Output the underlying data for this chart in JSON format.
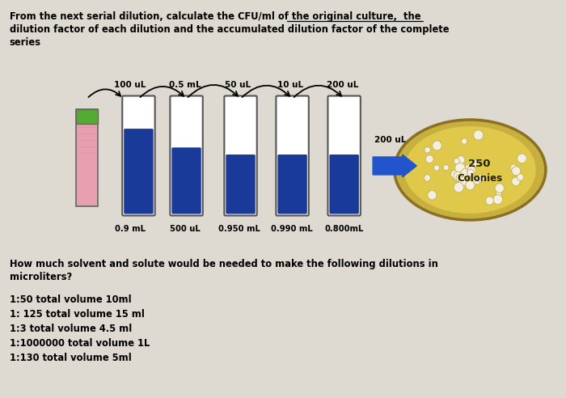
{
  "bg_color": "#dedad2",
  "title_line1": "From the next serial dilution, calculate the CFU/ml of the original culture,  the",
  "title_line2": "dilution factor of each dilution and the accumulated dilution factor of the complete",
  "title_line3": "series",
  "top_labels": [
    "100 uL",
    "0.5 mL",
    "50 uL",
    "10 uL",
    "200 uL"
  ],
  "bottom_labels": [
    "0.9 mL",
    "500 uL",
    "0.950 mL",
    "0.990 mL",
    "0.800mL"
  ],
  "transfer_label": "200 uL",
  "plate_label1": "250",
  "plate_label2": "Colonies",
  "question_line1": "How much solvent and solute would be needed to make the following dilutions in",
  "question_line2": "microliters?",
  "dilutions": [
    "1:50 total volume 10ml",
    "1: 125 total volume 15 ml",
    "1:3 total volume 4.5 ml",
    "1:1000000 total volume 1L",
    "1:130 total volume 5ml"
  ]
}
